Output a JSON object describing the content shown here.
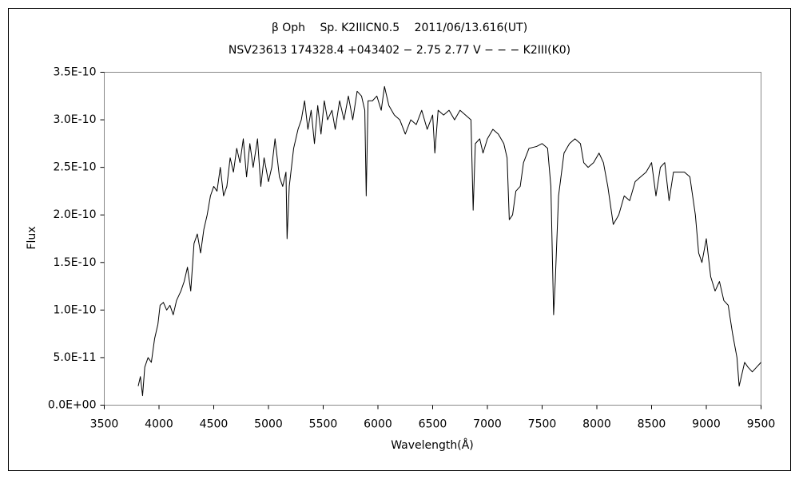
{
  "chart_data": {
    "type": "line",
    "title": "β Oph　 Sp. K2IIICN0.5　 2011/06/13.616(UT)",
    "subtitle": "NSV23613 174328.4 +043402 − 2.75 2.77 V − − − K2III(K0)",
    "xlabel": "Wavelength(Å)",
    "ylabel": "Flux",
    "color": "#000000",
    "xlim": [
      3500,
      9500
    ],
    "xticks": [
      3500,
      4000,
      4500,
      5000,
      5500,
      6000,
      6500,
      7000,
      7500,
      8000,
      8500,
      9000,
      9500
    ],
    "ylim": [
      0,
      3.5e-10
    ],
    "yticks": [
      {
        "value": 0,
        "label": "0.0E+00"
      },
      {
        "value": 5e-11,
        "label": "5.0E-11"
      },
      {
        "value": 1e-10,
        "label": "1.0E-10"
      },
      {
        "value": 1.5e-10,
        "label": "1.5E-10"
      },
      {
        "value": 2e-10,
        "label": "2.0E-10"
      },
      {
        "value": 2.5e-10,
        "label": "2.5E-10"
      },
      {
        "value": 3e-10,
        "label": "3.0E-10"
      },
      {
        "value": 3.5e-10,
        "label": "3.5E-10"
      }
    ],
    "x": [
      3810,
      3830,
      3850,
      3870,
      3900,
      3930,
      3960,
      3990,
      4010,
      4040,
      4070,
      4100,
      4130,
      4160,
      4200,
      4230,
      4260,
      4290,
      4320,
      4350,
      4380,
      4410,
      4440,
      4470,
      4500,
      4530,
      4560,
      4590,
      4620,
      4650,
      4680,
      4710,
      4740,
      4770,
      4800,
      4830,
      4860,
      4900,
      4930,
      4960,
      5000,
      5030,
      5060,
      5100,
      5130,
      5160,
      5170,
      5190,
      5230,
      5270,
      5300,
      5330,
      5360,
      5390,
      5420,
      5450,
      5480,
      5510,
      5540,
      5580,
      5610,
      5650,
      5690,
      5730,
      5770,
      5810,
      5850,
      5880,
      5893,
      5910,
      5950,
      5990,
      6030,
      6060,
      6100,
      6150,
      6200,
      6250,
      6300,
      6350,
      6400,
      6450,
      6500,
      6520,
      6550,
      6600,
      6650,
      6700,
      6750,
      6800,
      6850,
      6870,
      6890,
      6930,
      6960,
      7000,
      7050,
      7100,
      7150,
      7180,
      7200,
      7230,
      7260,
      7300,
      7330,
      7380,
      7450,
      7500,
      7550,
      7580,
      7605,
      7620,
      7650,
      7700,
      7750,
      7800,
      7850,
      7880,
      7920,
      7970,
      8020,
      8060,
      8100,
      8150,
      8200,
      8250,
      8300,
      8350,
      8400,
      8450,
      8500,
      8540,
      8580,
      8620,
      8660,
      8700,
      8750,
      8800,
      8850,
      8900,
      8930,
      8960,
      9000,
      9040,
      9080,
      9120,
      9160,
      9200,
      9240,
      9280,
      9300,
      9320,
      9350,
      9380,
      9420,
      9460,
      9500
    ],
    "values": [
      2e-11,
      3e-11,
      1e-11,
      4e-11,
      5e-11,
      4.5e-11,
      7e-11,
      8.5e-11,
      1.05e-10,
      1.08e-10,
      1e-10,
      1.05e-10,
      9.5e-11,
      1.1e-10,
      1.2e-10,
      1.3e-10,
      1.45e-10,
      1.2e-10,
      1.7e-10,
      1.8e-10,
      1.6e-10,
      1.85e-10,
      2e-10,
      2.2e-10,
      2.3e-10,
      2.25e-10,
      2.5e-10,
      2.2e-10,
      2.3e-10,
      2.6e-10,
      2.45e-10,
      2.7e-10,
      2.55e-10,
      2.8e-10,
      2.4e-10,
      2.75e-10,
      2.5e-10,
      2.8e-10,
      2.3e-10,
      2.6e-10,
      2.35e-10,
      2.5e-10,
      2.8e-10,
      2.4e-10,
      2.3e-10,
      2.45e-10,
      1.75e-10,
      2.3e-10,
      2.7e-10,
      2.9e-10,
      3e-10,
      3.2e-10,
      2.9e-10,
      3.1e-10,
      2.75e-10,
      3.15e-10,
      2.85e-10,
      3.2e-10,
      3e-10,
      3.1e-10,
      2.9e-10,
      3.2e-10,
      3e-10,
      3.25e-10,
      3e-10,
      3.3e-10,
      3.25e-10,
      3.1e-10,
      2.2e-10,
      3.2e-10,
      3.2e-10,
      3.25e-10,
      3.1e-10,
      3.35e-10,
      3.15e-10,
      3.05e-10,
      3e-10,
      2.85e-10,
      3e-10,
      2.95e-10,
      3.1e-10,
      2.9e-10,
      3.05e-10,
      2.65e-10,
      3.1e-10,
      3.05e-10,
      3.1e-10,
      3e-10,
      3.1e-10,
      3.05e-10,
      3e-10,
      2.05e-10,
      2.75e-10,
      2.8e-10,
      2.65e-10,
      2.8e-10,
      2.9e-10,
      2.85e-10,
      2.75e-10,
      2.6e-10,
      1.95e-10,
      2e-10,
      2.25e-10,
      2.3e-10,
      2.55e-10,
      2.7e-10,
      2.72e-10,
      2.75e-10,
      2.7e-10,
      2.3e-10,
      9.5e-11,
      1.3e-10,
      2.2e-10,
      2.65e-10,
      2.75e-10,
      2.8e-10,
      2.75e-10,
      2.55e-10,
      2.5e-10,
      2.55e-10,
      2.65e-10,
      2.55e-10,
      2.3e-10,
      1.9e-10,
      2e-10,
      2.2e-10,
      2.15e-10,
      2.35e-10,
      2.4e-10,
      2.45e-10,
      2.55e-10,
      2.2e-10,
      2.5e-10,
      2.55e-10,
      2.15e-10,
      2.45e-10,
      2.45e-10,
      2.45e-10,
      2.4e-10,
      2e-10,
      1.6e-10,
      1.5e-10,
      1.75e-10,
      1.35e-10,
      1.2e-10,
      1.3e-10,
      1.1e-10,
      1.05e-10,
      7.5e-11,
      5e-11,
      2e-11,
      3e-11,
      4.5e-11,
      4e-11,
      3.5e-11,
      4e-11,
      4.5e-11
    ]
  }
}
